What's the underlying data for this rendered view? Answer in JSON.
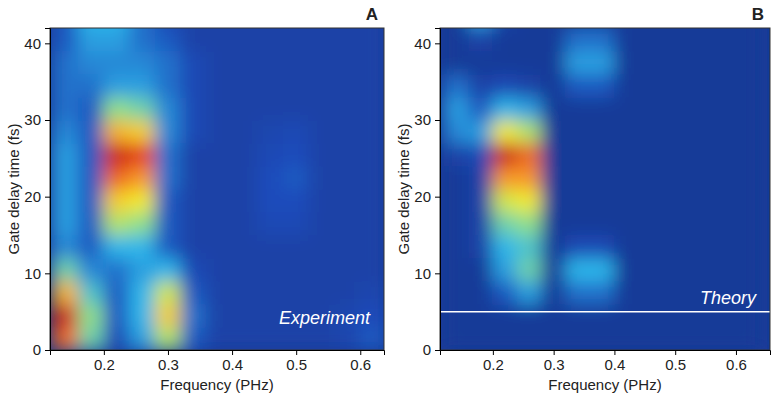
{
  "chart_data": [
    {
      "type": "heatmap",
      "label": "A",
      "annotation": "Experiment",
      "x_label": "Frequency (PHz)",
      "y_label": "Gate delay time (fs)",
      "xlim": [
        0.116,
        0.637
      ],
      "ylim": [
        0,
        42
      ],
      "xticks": [
        0.2,
        0.3,
        0.4,
        0.5,
        0.6
      ],
      "yticks": [
        0,
        10,
        20,
        30,
        40
      ],
      "zlim": [
        0,
        1
      ],
      "x": [
        0.14,
        0.18,
        0.22,
        0.26,
        0.3,
        0.34,
        0.38,
        0.42,
        0.46,
        0.5,
        0.54,
        0.58,
        0.62
      ],
      "y": [
        1.5,
        4.5,
        7.5,
        10.5,
        13.5,
        16.5,
        19.5,
        22.5,
        25.5,
        28.5,
        31.5,
        34.5,
        37.5,
        40.5,
        43.5
      ],
      "z": [
        [
          0.85,
          0.45,
          0.1,
          0.3,
          0.55,
          0.15,
          0.05,
          0.05,
          0.05,
          0.05,
          0.05,
          0.08,
          0.15
        ],
        [
          0.95,
          0.5,
          0.15,
          0.35,
          0.7,
          0.2,
          0.05,
          0.05,
          0.05,
          0.05,
          0.05,
          0.08,
          0.12
        ],
        [
          0.75,
          0.4,
          0.15,
          0.35,
          0.6,
          0.15,
          0.05,
          0.05,
          0.05,
          0.05,
          0.05,
          0.05,
          0.08
        ],
        [
          0.45,
          0.25,
          0.2,
          0.3,
          0.35,
          0.1,
          0.05,
          0.05,
          0.05,
          0.05,
          0.05,
          0.05,
          0.05
        ],
        [
          0.25,
          0.15,
          0.35,
          0.35,
          0.15,
          0.05,
          0.05,
          0.05,
          0.05,
          0.05,
          0.05,
          0.05,
          0.05
        ],
        [
          0.3,
          0.15,
          0.55,
          0.5,
          0.15,
          0.05,
          0.05,
          0.05,
          0.1,
          0.1,
          0.05,
          0.05,
          0.05
        ],
        [
          0.3,
          0.15,
          0.7,
          0.65,
          0.15,
          0.05,
          0.05,
          0.05,
          0.12,
          0.12,
          0.05,
          0.05,
          0.05
        ],
        [
          0.3,
          0.15,
          0.85,
          0.8,
          0.2,
          0.05,
          0.05,
          0.05,
          0.12,
          0.15,
          0.05,
          0.05,
          0.05
        ],
        [
          0.3,
          0.15,
          0.95,
          0.9,
          0.2,
          0.05,
          0.05,
          0.05,
          0.1,
          0.12,
          0.05,
          0.05,
          0.05
        ],
        [
          0.25,
          0.15,
          0.75,
          0.7,
          0.25,
          0.1,
          0.05,
          0.05,
          0.08,
          0.1,
          0.05,
          0.05,
          0.05
        ],
        [
          0.2,
          0.15,
          0.5,
          0.45,
          0.25,
          0.1,
          0.05,
          0.05,
          0.05,
          0.05,
          0.05,
          0.05,
          0.05
        ],
        [
          0.2,
          0.2,
          0.3,
          0.3,
          0.2,
          0.1,
          0.05,
          0.05,
          0.05,
          0.05,
          0.05,
          0.05,
          0.05
        ],
        [
          0.2,
          0.25,
          0.25,
          0.25,
          0.2,
          0.1,
          0.05,
          0.05,
          0.05,
          0.05,
          0.05,
          0.05,
          0.05
        ],
        [
          0.15,
          0.3,
          0.3,
          0.2,
          0.15,
          0.05,
          0.05,
          0.05,
          0.05,
          0.05,
          0.05,
          0.05,
          0.05
        ],
        [
          0.15,
          0.35,
          0.35,
          0.2,
          0.1,
          0.05,
          0.05,
          0.05,
          0.05,
          0.05,
          0.05,
          0.05,
          0.05
        ]
      ]
    },
    {
      "type": "heatmap",
      "label": "B",
      "annotation": "Theory",
      "x_label": "Frequency (PHz)",
      "y_label": "Gate delay time (fs)",
      "xlim": [
        0.113,
        0.656
      ],
      "ylim": [
        0,
        42
      ],
      "xticks": [
        0.2,
        0.3,
        0.4,
        0.5,
        0.6
      ],
      "yticks": [
        0,
        10,
        20,
        30,
        40
      ],
      "zlim": [
        0,
        1
      ],
      "hline": 5,
      "x": [
        0.14,
        0.18,
        0.22,
        0.26,
        0.3,
        0.34,
        0.38,
        0.42,
        0.46,
        0.5,
        0.54,
        0.58,
        0.62
      ],
      "y": [
        1.5,
        4.5,
        7.5,
        10.5,
        13.5,
        16.5,
        19.5,
        22.5,
        25.5,
        28.5,
        31.5,
        34.5,
        37.5,
        40.5,
        43.5
      ],
      "z": [
        [
          0,
          0,
          0,
          0,
          0,
          0,
          0,
          0,
          0,
          0,
          0,
          0,
          0
        ],
        [
          0,
          0,
          0,
          0,
          0,
          0,
          0,
          0,
          0,
          0,
          0,
          0,
          0
        ],
        [
          0,
          0,
          0.15,
          0.3,
          0,
          0.2,
          0.2,
          0,
          0,
          0,
          0,
          0,
          0
        ],
        [
          0,
          0,
          0.3,
          0.45,
          0,
          0.35,
          0.35,
          0,
          0,
          0,
          0,
          0,
          0
        ],
        [
          0,
          0.05,
          0.35,
          0.4,
          0,
          0.1,
          0.1,
          0,
          0,
          0,
          0,
          0,
          0
        ],
        [
          0,
          0.05,
          0.45,
          0.5,
          0,
          0,
          0,
          0,
          0,
          0,
          0,
          0,
          0
        ],
        [
          0,
          0.05,
          0.6,
          0.65,
          0,
          0,
          0,
          0,
          0,
          0,
          0,
          0,
          0
        ],
        [
          0,
          0.05,
          0.8,
          0.8,
          0,
          0,
          0,
          0,
          0,
          0,
          0,
          0,
          0
        ],
        [
          0.05,
          0.1,
          0.95,
          0.85,
          0,
          0,
          0,
          0,
          0,
          0,
          0,
          0,
          0
        ],
        [
          0.25,
          0.3,
          0.65,
          0.55,
          0,
          0,
          0,
          0,
          0,
          0,
          0,
          0,
          0
        ],
        [
          0.3,
          0.15,
          0.35,
          0.3,
          0,
          0,
          0,
          0,
          0,
          0,
          0,
          0,
          0
        ],
        [
          0.2,
          0.05,
          0.1,
          0.05,
          0,
          0.15,
          0.15,
          0,
          0,
          0,
          0,
          0,
          0
        ],
        [
          0,
          0,
          0,
          0,
          0,
          0.3,
          0.3,
          0,
          0,
          0,
          0,
          0,
          0
        ],
        [
          0,
          0.05,
          0,
          0,
          0,
          0.2,
          0.2,
          0,
          0,
          0,
          0,
          0,
          0
        ],
        [
          0,
          0.3,
          0.05,
          0,
          0,
          0,
          0,
          0,
          0,
          0,
          0,
          0,
          0
        ]
      ]
    }
  ]
}
